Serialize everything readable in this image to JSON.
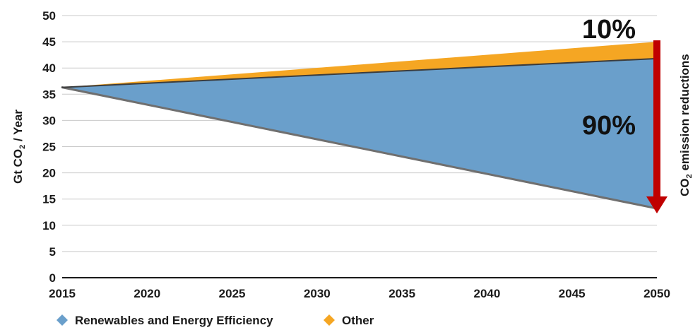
{
  "chart_data": {
    "type": "area",
    "x": [
      2015,
      2050
    ],
    "xticks": [
      2015,
      2020,
      2025,
      2030,
      2035,
      2040,
      2045,
      2050
    ],
    "yticks": [
      0,
      5,
      10,
      15,
      20,
      25,
      30,
      35,
      40,
      45,
      50
    ],
    "xlim": [
      2015,
      2050
    ],
    "ylim": [
      0,
      50
    ],
    "ylabel": "Gt CO2 / Year",
    "grid": true,
    "legend_position": "bottom-left",
    "series": [
      {
        "name": "Renewables and Energy Efficiency",
        "color": "#6a9fcb",
        "lower": [
          36.3,
          13.2
        ],
        "upper": [
          36.3,
          41.8
        ]
      },
      {
        "name": "Other",
        "color": "#f5a623",
        "lower": [
          36.3,
          41.8
        ],
        "upper": [
          36.3,
          45.0
        ]
      }
    ],
    "annotations": {
      "other_share": "10%",
      "renewables_share": "90%",
      "arrow_label": "CO2 emission reductions",
      "arrow_color": "#c00000"
    }
  }
}
